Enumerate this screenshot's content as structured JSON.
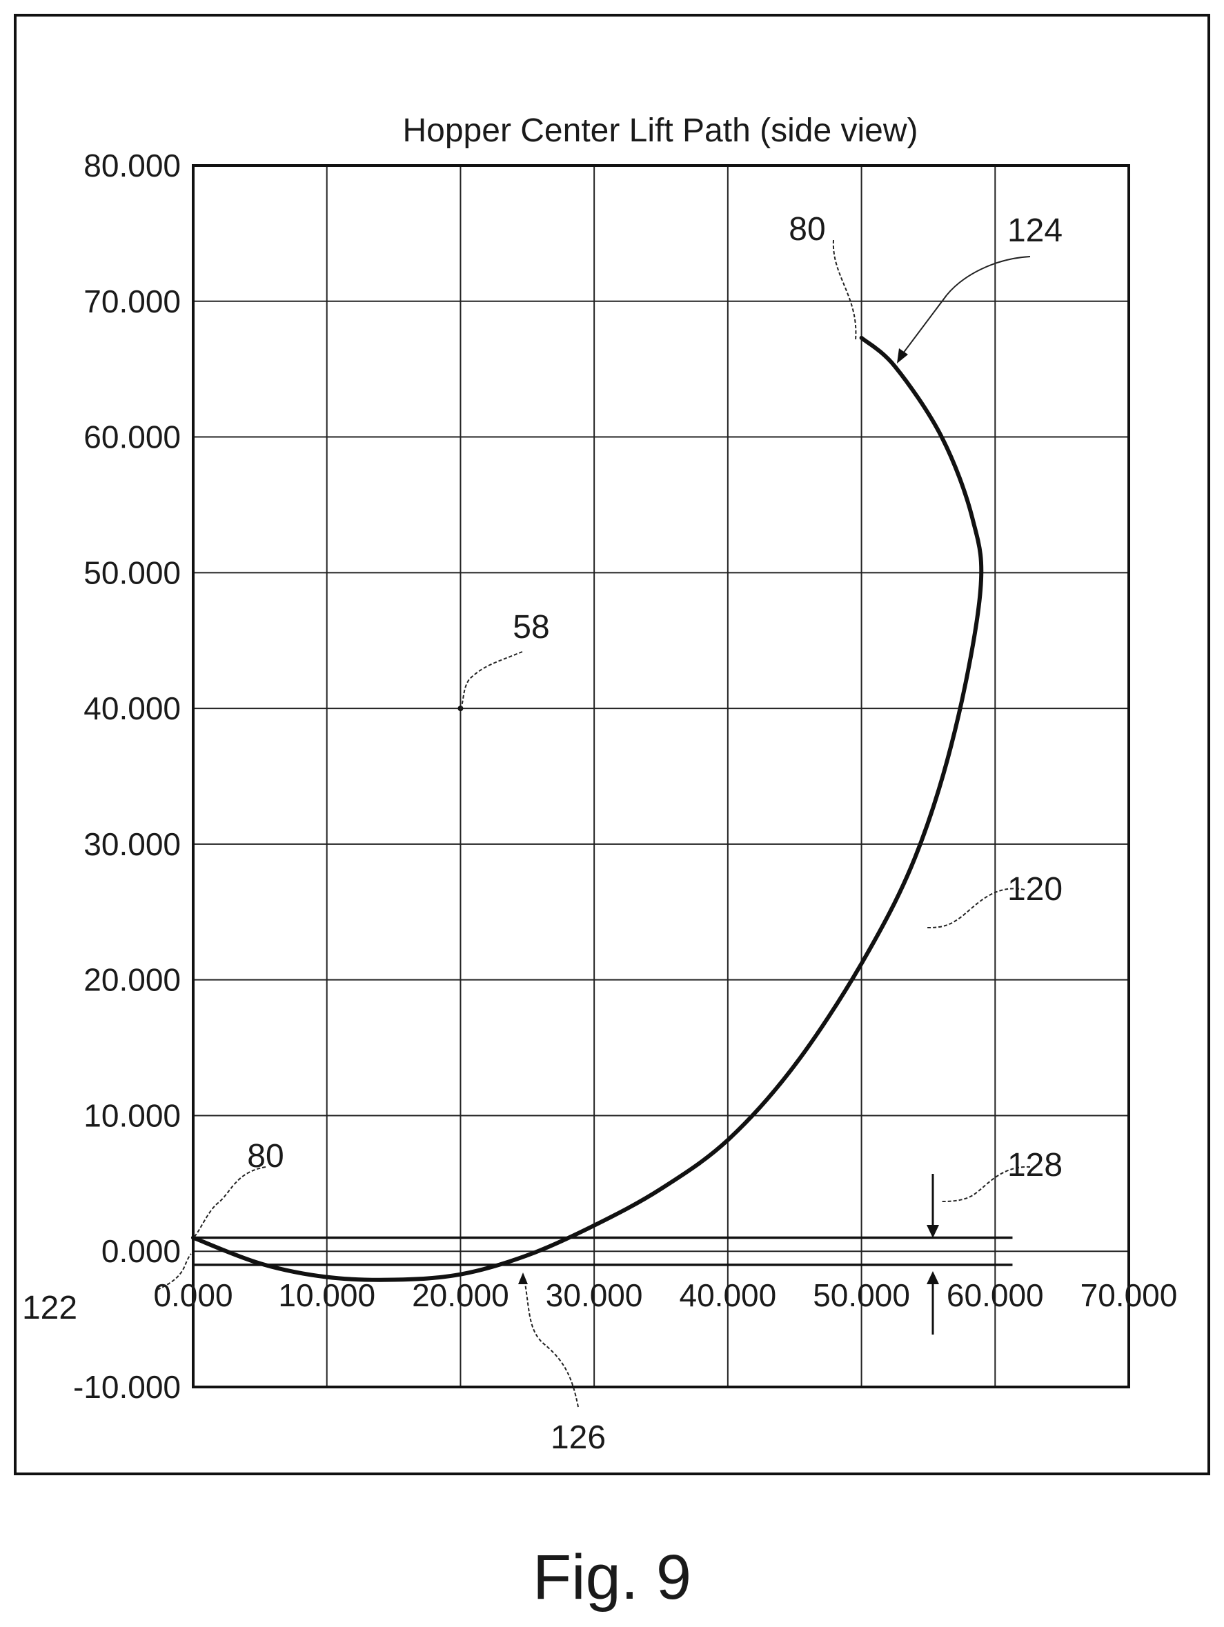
{
  "chart_data": {
    "type": "line",
    "title": "Hopper Center Lift Path (side view)",
    "xlabel": "",
    "ylabel": "",
    "xlim": [
      0,
      70
    ],
    "ylim": [
      -10,
      80
    ],
    "x_ticks": [
      "0.000",
      "10.000",
      "20.000",
      "30.000",
      "40.000",
      "50.000",
      "60.000",
      "70.000"
    ],
    "y_ticks": [
      "80.000",
      "70.000",
      "60.000",
      "50.000",
      "40.000",
      "30.000",
      "20.000",
      "10.000",
      "0.000",
      "-10.000"
    ],
    "grid": true,
    "series": [
      {
        "x": [
          0.0,
          5.0,
          10.0,
          15.0,
          20.0,
          25.0,
          30.0,
          35.0,
          40.0,
          45.0,
          50.0,
          54.0,
          57.0,
          58.9,
          58.3,
          56.0,
          52.5,
          50.0
        ],
        "y": [
          1.0,
          -0.9,
          -1.9,
          -2.1,
          -1.7,
          -0.3,
          1.9,
          4.6,
          8.2,
          13.7,
          21.2,
          29.0,
          38.4,
          48.7,
          54.0,
          60.0,
          65.2,
          67.3
        ]
      }
    ],
    "reference_lines": [
      {
        "y": 1.0,
        "x_range": [
          0,
          61.3
        ]
      },
      {
        "y": -1.0,
        "x_range": [
          0,
          61.3
        ]
      }
    ],
    "center_point": {
      "x": 20.0,
      "y": 40.0
    },
    "annotations": [
      {
        "text": "80",
        "x": 50.0,
        "y": 67.3
      },
      {
        "text": "124",
        "x": 52.7,
        "y": 65.5
      },
      {
        "text": "58",
        "x": 20.0,
        "y": 40.0
      },
      {
        "text": "120",
        "x": 55.8,
        "y": 23.5
      },
      {
        "text": "80",
        "x": 0.0,
        "y": 1.0
      },
      {
        "text": "128",
        "x": 55.8,
        "y": 2.0
      },
      {
        "text": "122",
        "x": 0.0,
        "y": -1.0
      },
      {
        "text": "126",
        "x": 24.5,
        "y": -1.0
      }
    ]
  },
  "figure": {
    "caption": "Fig. 9"
  }
}
